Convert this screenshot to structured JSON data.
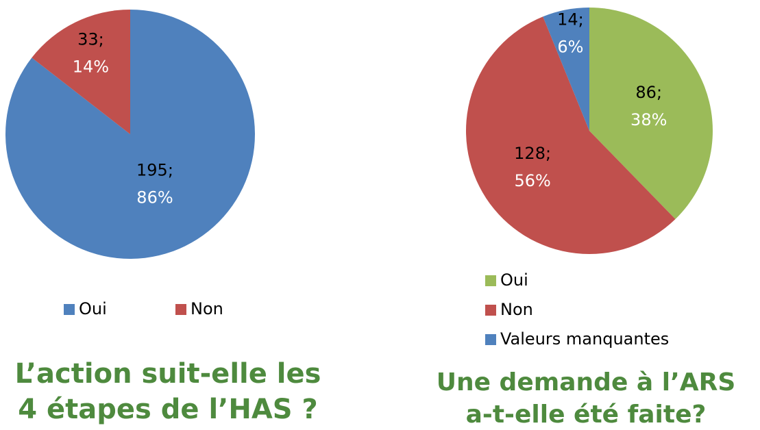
{
  "chart_data": [
    {
      "type": "pie",
      "title": [
        "L’action suit-elle les",
        "4 étapes de l’HAS ?"
      ],
      "categories": [
        "Oui",
        "Non"
      ],
      "values": [
        195,
        33
      ],
      "value_labels": [
        "195;",
        "33;"
      ],
      "percent_labels": [
        "86%",
        "14%"
      ],
      "colors": [
        "#4f81bd",
        "#c0504d"
      ],
      "legend": "bottom-horizontal"
    },
    {
      "type": "pie",
      "title": [
        "Une demande à l’ARS",
        "a-t-elle été faite?"
      ],
      "categories": [
        "Oui",
        "Non",
        "Valeurs manquantes"
      ],
      "values": [
        86,
        128,
        14
      ],
      "value_labels": [
        "86;",
        "128;",
        "14;"
      ],
      "percent_labels": [
        "38%",
        "56%",
        "6%"
      ],
      "colors": [
        "#9bbb59",
        "#c0504d",
        "#4f81bd"
      ],
      "legend": "bottom-vertical"
    }
  ]
}
